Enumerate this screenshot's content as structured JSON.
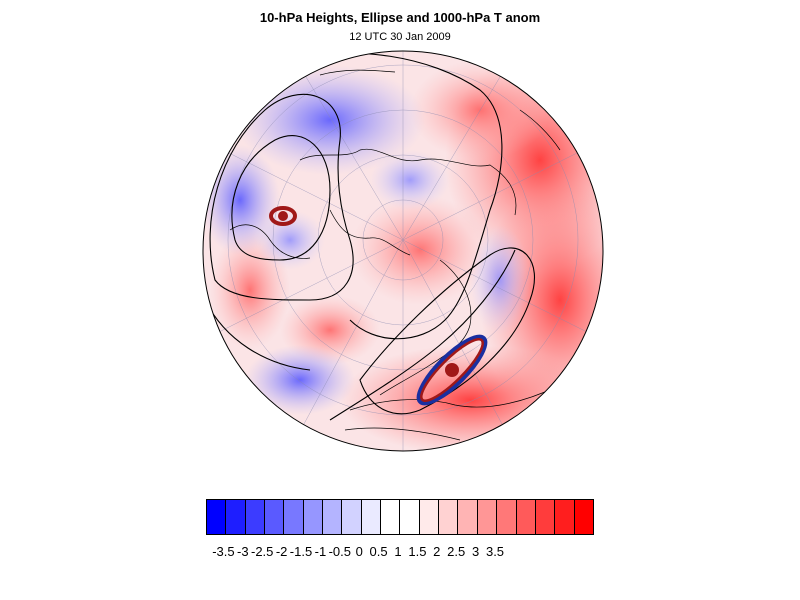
{
  "header": {
    "title": "10-hPa Heights, Ellipse and 1000-hPa T anom",
    "subtitle": "12 UTC 30 Jan 2009"
  },
  "map": {
    "projection": "orthographic polar view",
    "field": "1000-hPa temperature anomaly (shaded)",
    "contours": "10-hPa heights (black)",
    "overlays": [
      "vortex ellipse (blue/dark red)",
      "ellipse centroids (dark red)"
    ],
    "colors": {
      "positive": "#ff0000",
      "negative": "#0000ff",
      "contour": "#000000",
      "ellipse": "#1a2fa0",
      "centroid": "#a01818"
    }
  },
  "colorbar": {
    "colors": [
      "#0000ff",
      "#1e1eff",
      "#3c3cff",
      "#5a5aff",
      "#7878ff",
      "#9696ff",
      "#b4b4ff",
      "#d2d2ff",
      "#eaeaff",
      "#ffffff",
      "#ffffff",
      "#ffeaea",
      "#ffd2d2",
      "#ffb4b4",
      "#ff9696",
      "#ff7878",
      "#ff5a5a",
      "#ff3c3c",
      "#ff1e1e",
      "#ff0000"
    ],
    "labels": [
      "-3.5",
      "-3",
      "-2.5",
      "-2",
      "-1.5",
      "-1",
      "-0.5",
      "0",
      "0.5",
      "1",
      "1.5",
      "2",
      "2.5",
      "3",
      "3.5"
    ]
  }
}
